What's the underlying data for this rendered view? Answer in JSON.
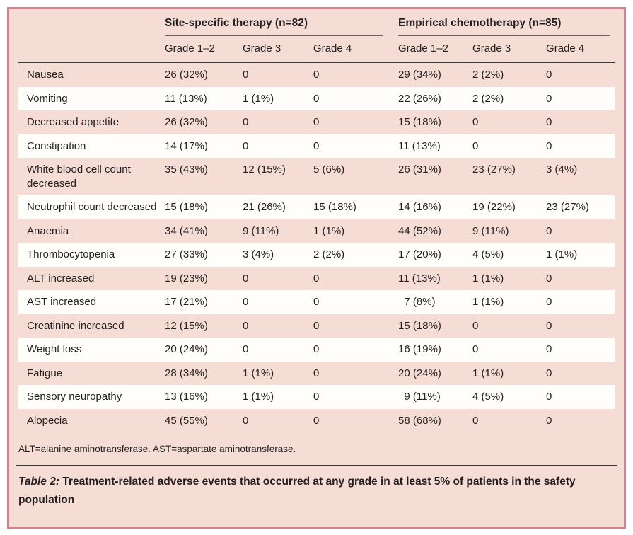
{
  "colors": {
    "panel_background": "#f5dcd4",
    "panel_border": "#c6868e",
    "stripe_row": "#fffefb",
    "text": "#231f20",
    "header_rule": "#3d3a39",
    "group_underline": "#6e605d"
  },
  "table": {
    "groups": [
      {
        "label": "Site-specific therapy (n=82)"
      },
      {
        "label": "Empirical chemotherapy (n=85)"
      }
    ],
    "grade_headers": [
      "Grade 1–2",
      "Grade 3",
      "Grade 4"
    ],
    "rows": [
      {
        "label": "Nausea",
        "values": [
          "26 (32%)",
          "0",
          "0",
          "29 (34%)",
          "2 (2%)",
          "0"
        ]
      },
      {
        "label": "Vomiting",
        "values": [
          "11 (13%)",
          "1 (1%)",
          "0",
          "22 (26%)",
          "2 (2%)",
          "0"
        ]
      },
      {
        "label": "Decreased appetite",
        "values": [
          "26 (32%)",
          "0",
          "0",
          "15 (18%)",
          "0",
          "0"
        ]
      },
      {
        "label": "Constipation",
        "values": [
          "14 (17%)",
          "0",
          "0",
          "11 (13%)",
          "0",
          "0"
        ]
      },
      {
        "label": "White blood cell count decreased",
        "values": [
          "35 (43%)",
          "12 (15%)",
          "5 (6%)",
          "26 (31%)",
          "23 (27%)",
          "3 (4%)"
        ]
      },
      {
        "label": "Neutrophil count decreased",
        "values": [
          "15 (18%)",
          "21 (26%)",
          "15 (18%)",
          "14 (16%)",
          "19 (22%)",
          "23 (27%)"
        ]
      },
      {
        "label": "Anaemia",
        "values": [
          "34 (41%)",
          "9 (11%)",
          "1 (1%)",
          "44 (52%)",
          "9 (11%)",
          "0"
        ]
      },
      {
        "label": "Thrombocytopenia",
        "values": [
          "27 (33%)",
          "3 (4%)",
          "2 (2%)",
          "17 (20%)",
          "4 (5%)",
          "1 (1%)"
        ]
      },
      {
        "label": "ALT increased",
        "values": [
          "19 (23%)",
          "0",
          "0",
          "11 (13%)",
          "1 (1%)",
          "0"
        ]
      },
      {
        "label": "AST increased",
        "values": [
          "17 (21%)",
          "0",
          "0",
          "  7 (8%)",
          "1 (1%)",
          "0"
        ]
      },
      {
        "label": "Creatinine increased",
        "values": [
          "12 (15%)",
          "0",
          "0",
          "15 (18%)",
          "0",
          "0"
        ]
      },
      {
        "label": "Weight loss",
        "values": [
          "20 (24%)",
          "0",
          "0",
          "16 (19%)",
          "0",
          "0"
        ]
      },
      {
        "label": "Fatigue",
        "values": [
          "28 (34%)",
          "1 (1%)",
          "0",
          "20 (24%)",
          "1 (1%)",
          "0"
        ]
      },
      {
        "label": "Sensory neuropathy",
        "values": [
          "13 (16%)",
          "1 (1%)",
          "0",
          "  9 (11%)",
          "4 (5%)",
          "0"
        ]
      },
      {
        "label": "Alopecia",
        "values": [
          "45 (55%)",
          "0",
          "0",
          "58 (68%)",
          "0",
          "0"
        ]
      }
    ],
    "footnote": "ALT=alanine aminotransferase. AST=aspartate aminotransferase.",
    "caption_label": "Table 2:",
    "caption_text": "Treatment-related adverse events that occurred at any grade in at least 5% of patients in the safety population"
  }
}
